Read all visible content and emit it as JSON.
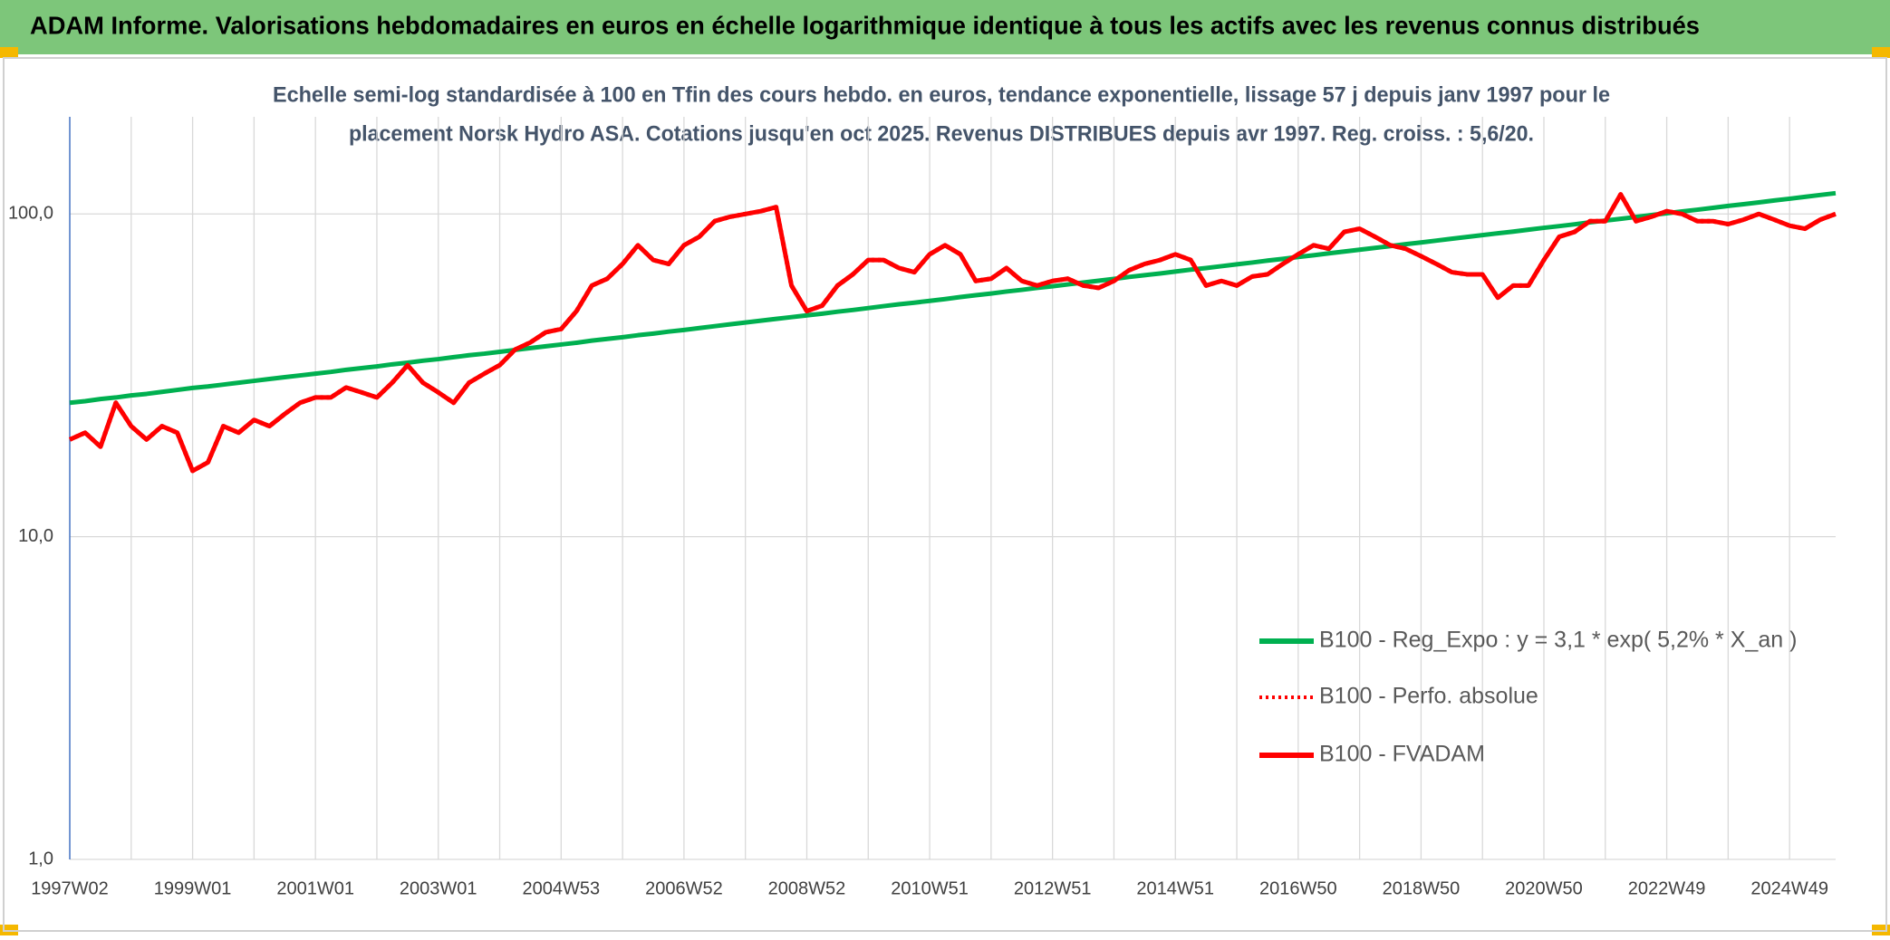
{
  "chart_data": {
    "type": "line",
    "title": "ADAM Informe. Valorisations hebdomadaires en euros en échelle logarithmique identique à tous les actifs avec les revenus connus distribués",
    "subtitle": [
      "Echelle semi-log standardisée à 100 en Tfin des cours hebdo. en euros, tendance exponentielle, lissage 57 j depuis janv 1997 pour le",
      "placement Norsk Hydro ASA. Cotations jusqu'en oct 2025. Revenus DISTRIBUES depuis avr 1997. Reg. croiss. : 5,6/20."
    ],
    "log_scale": true,
    "grid": true,
    "legend": "right",
    "ylim": [
      1,
      200
    ],
    "yticks": [
      {
        "value": 1,
        "label": "1,0"
      },
      {
        "value": 10,
        "label": "10,0"
      },
      {
        "value": 100,
        "label": "100,0"
      }
    ],
    "categories": [
      "1997W02",
      null,
      null,
      null,
      null,
      null,
      null,
      null,
      "1999W01",
      null,
      null,
      null,
      null,
      null,
      null,
      null,
      "2001W01",
      null,
      null,
      null,
      null,
      null,
      null,
      null,
      "2003W01",
      null,
      null,
      null,
      null,
      null,
      null,
      null,
      "2004W53",
      null,
      null,
      null,
      null,
      null,
      null,
      null,
      "2006W52",
      null,
      null,
      null,
      null,
      null,
      null,
      null,
      "2008W52",
      null,
      null,
      null,
      null,
      null,
      null,
      null,
      "2010W51",
      null,
      null,
      null,
      null,
      null,
      null,
      null,
      "2012W51",
      null,
      null,
      null,
      null,
      null,
      null,
      null,
      "2014W51",
      null,
      null,
      null,
      null,
      null,
      null,
      null,
      "2016W50",
      null,
      null,
      null,
      null,
      null,
      null,
      null,
      "2018W50",
      null,
      null,
      null,
      null,
      null,
      null,
      null,
      "2020W50",
      null,
      null,
      null,
      null,
      null,
      null,
      null,
      "2022W49",
      null,
      null,
      null,
      null,
      null,
      null,
      null,
      "2024W49",
      null,
      null,
      null
    ],
    "series": [
      {
        "name": "B100 - Reg_Expo : y = 3,1 * exp( 5,2% *  X_an )",
        "color": "#00b050",
        "style": "solid",
        "values": [
          26.0,
          26.3,
          26.7,
          27.0,
          27.4,
          27.7,
          28.1,
          28.5,
          28.9,
          29.2,
          29.6,
          30.0,
          30.4,
          30.8,
          31.2,
          31.6,
          32.0,
          32.4,
          32.9,
          33.3,
          33.7,
          34.2,
          34.6,
          35.1,
          35.5,
          36.0,
          36.5,
          36.9,
          37.4,
          37.9,
          38.4,
          38.9,
          39.4,
          39.9,
          40.5,
          41.0,
          41.5,
          42.1,
          42.6,
          43.2,
          43.7,
          44.3,
          44.9,
          45.5,
          46.1,
          46.7,
          47.3,
          47.9,
          48.5,
          49.1,
          49.8,
          50.4,
          51.1,
          51.8,
          52.5,
          53.1,
          53.8,
          54.5,
          55.3,
          56.0,
          56.7,
          57.5,
          58.2,
          59.0,
          59.7,
          60.5,
          61.3,
          62.1,
          62.9,
          63.8,
          64.6,
          65.4,
          66.3,
          67.2,
          68.0,
          68.9,
          69.8,
          70.7,
          71.7,
          72.6,
          73.6,
          74.5,
          75.5,
          76.5,
          77.5,
          78.5,
          79.5,
          80.6,
          81.6,
          82.7,
          83.8,
          84.9,
          86.0,
          87.1,
          88.2,
          89.4,
          90.6,
          91.7,
          92.9,
          94.2,
          95.4,
          96.6,
          97.9,
          99.2,
          100.5,
          101.8,
          103.1,
          104.5,
          105.9,
          107.2,
          108.6,
          110.1,
          111.5,
          113.0,
          114.5,
          116.0
        ]
      },
      {
        "name": "B100 - Perfo. absolue",
        "color": "#ff0000",
        "style": "dotted",
        "values": [
          20,
          21,
          19,
          26,
          22,
          20,
          22,
          21,
          16,
          17,
          22,
          21,
          23,
          22,
          24,
          26,
          27,
          27,
          29,
          28,
          27,
          30,
          34,
          30,
          28,
          26,
          30,
          32,
          34,
          38,
          40,
          43,
          44,
          50,
          60,
          63,
          70,
          80,
          72,
          70,
          80,
          85,
          95,
          98,
          100,
          102,
          105,
          60,
          50,
          52,
          60,
          65,
          72,
          72,
          68,
          66,
          75,
          80,
          75,
          62,
          63,
          68,
          62,
          60,
          62,
          63,
          60,
          59,
          62,
          67,
          70,
          72,
          75,
          72,
          60,
          62,
          60,
          64,
          65,
          70,
          75,
          80,
          78,
          88,
          90,
          85,
          80,
          78,
          74,
          70,
          66,
          65,
          65,
          55,
          60,
          60,
          72,
          85,
          88,
          95,
          95,
          115,
          95,
          98,
          102,
          100,
          95,
          95,
          93,
          96,
          100,
          96,
          92,
          90,
          96,
          100
        ]
      },
      {
        "name": "B100 - FVADAM",
        "color": "#ff0000",
        "style": "solid",
        "values": [
          20,
          21,
          19,
          26,
          22,
          20,
          22,
          21,
          16,
          17,
          22,
          21,
          23,
          22,
          24,
          26,
          27,
          27,
          29,
          28,
          27,
          30,
          34,
          30,
          28,
          26,
          30,
          32,
          34,
          38,
          40,
          43,
          44,
          50,
          60,
          63,
          70,
          80,
          72,
          70,
          80,
          85,
          95,
          98,
          100,
          102,
          105,
          60,
          50,
          52,
          60,
          65,
          72,
          72,
          68,
          66,
          75,
          80,
          75,
          62,
          63,
          68,
          62,
          60,
          62,
          63,
          60,
          59,
          62,
          67,
          70,
          72,
          75,
          72,
          60,
          62,
          60,
          64,
          65,
          70,
          75,
          80,
          78,
          88,
          90,
          85,
          80,
          78,
          74,
          70,
          66,
          65,
          65,
          55,
          60,
          60,
          72,
          85,
          88,
          95,
          95,
          115,
          95,
          98,
          102,
          100,
          95,
          95,
          93,
          96,
          100,
          96,
          92,
          90,
          96,
          100
        ]
      }
    ]
  }
}
